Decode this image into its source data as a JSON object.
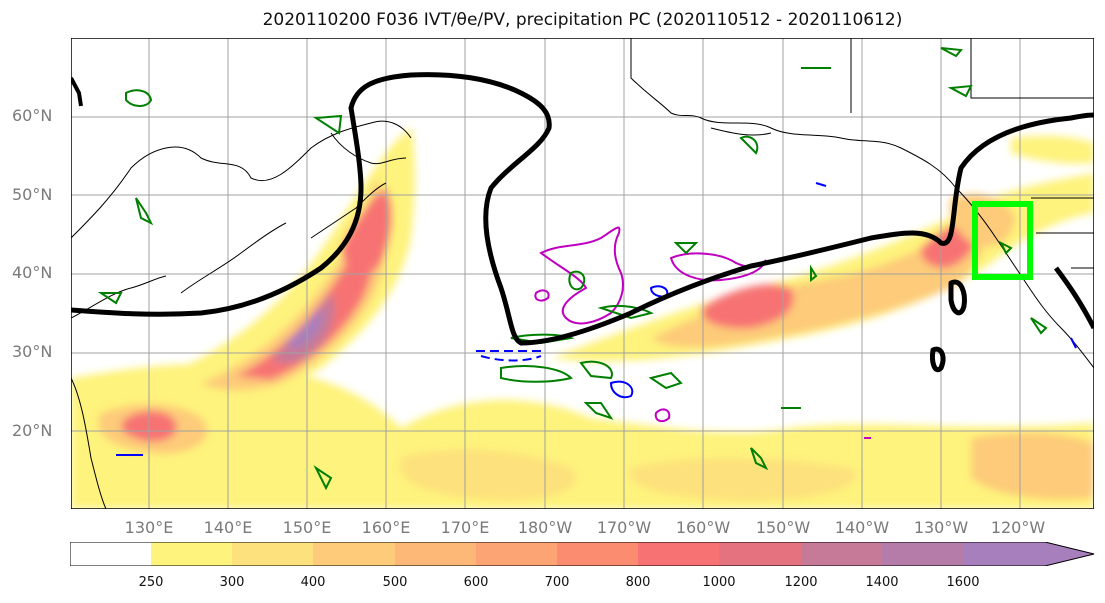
{
  "title": "2020110200 F036 IVT/θe/PV, precipitation PC (2020110512 - 2020110612)",
  "lat_labels": [
    "60°N",
    "50°N",
    "40°N",
    "30°N",
    "20°N"
  ],
  "lon_labels": [
    "130°E",
    "140°E",
    "150°E",
    "160°E",
    "170°E",
    "180°W",
    "170°W",
    "160°W",
    "150°W",
    "140°W",
    "130°W",
    "120°W"
  ],
  "colorbar": {
    "labels": [
      "250",
      "300",
      "400",
      "500",
      "600",
      "700",
      "800",
      "1000",
      "1200",
      "1400",
      "1600"
    ],
    "colors": [
      "#ffffff",
      "#fef37c",
      "#fde17c",
      "#fdcb79",
      "#fdb877",
      "#fca474",
      "#fc8c6f",
      "#f77373",
      "#e5727f",
      "#c77a97",
      "#a77fbd"
    ]
  },
  "colors": {
    "highlight_box": "#00ff00",
    "pv_contour": "#000000",
    "theta_e_contour": "#008000",
    "precip_pc_contour": "#c000c0",
    "negative_contour": "#0000ff"
  }
}
